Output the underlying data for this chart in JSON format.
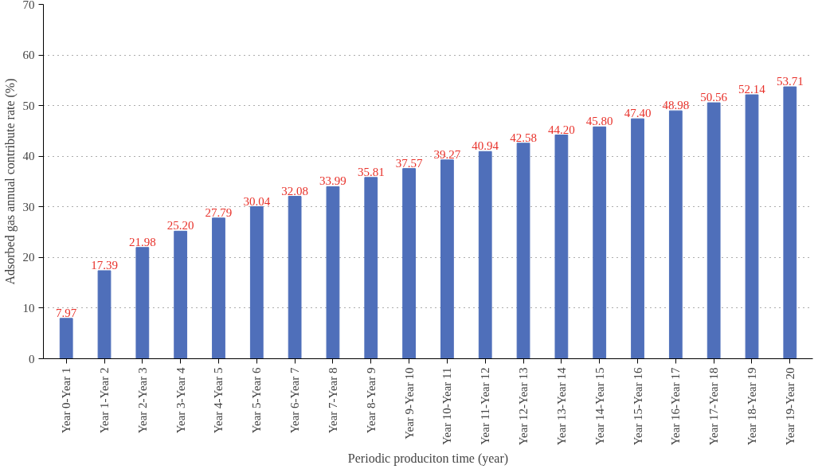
{
  "chart_data": {
    "type": "bar",
    "xlabel": "Periodic produciton time (year)",
    "ylabel": "Adsorbed gas annual contribute rate (%)",
    "categories": [
      "Year 0-Year 1",
      "Year 1-Year 2",
      "Year 2-Year 3",
      "Year 3-Year 4",
      "Year 4-Year 5",
      "Year 5-Year 6",
      "Year 6-Year 7",
      "Year 7-Year 8",
      "Year 8-Year 9",
      "Year 9-Year 10",
      "Year 10-Year 11",
      "Year 11-Year 12",
      "Year 12-Year 13",
      "Year 13-Year 14",
      "Year 14-Year 15",
      "Year 15-Year 16",
      "Year 16-Year 17",
      "Year 17-Year 18",
      "Year 18-Year 19",
      "Year 19-Year 20"
    ],
    "values": [
      7.97,
      17.39,
      21.98,
      25.2,
      27.79,
      30.04,
      32.08,
      33.99,
      35.81,
      37.57,
      39.27,
      40.94,
      42.58,
      44.2,
      45.8,
      47.4,
      48.98,
      50.56,
      52.14,
      53.71
    ],
    "value_labels": [
      "7.97",
      "17.39",
      "21.98",
      "25.20",
      "27.79",
      "30.04",
      "32.08",
      "33.99",
      "35.81",
      "37.57",
      "39.27",
      "40.94",
      "42.58",
      "44.20",
      "45.80",
      "47.40",
      "48.98",
      "50.56",
      "52.14",
      "53.71"
    ],
    "color": "#4f6fba",
    "ylim": [
      0,
      70
    ],
    "yticks": [
      0,
      10,
      20,
      30,
      40,
      50,
      60,
      70
    ],
    "grid": "y"
  }
}
